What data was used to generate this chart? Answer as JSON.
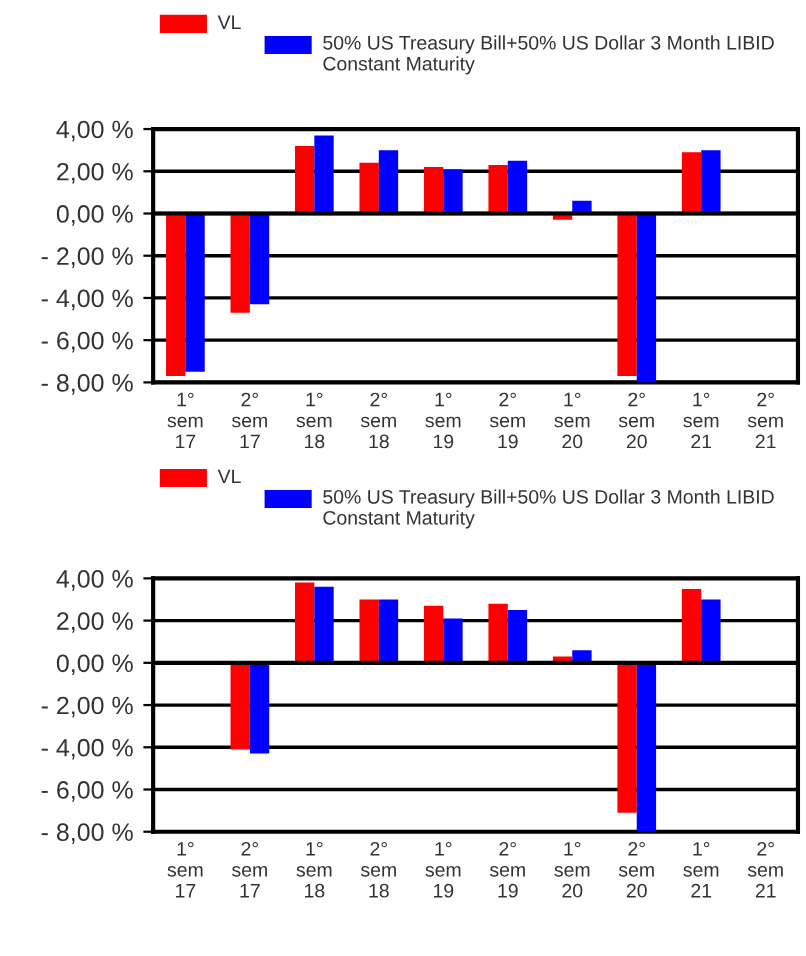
{
  "chart_data": [
    {
      "type": "bar",
      "categories": [
        "1°\nsem\n17",
        "2°\nsem\n17",
        "1°\nsem\n18",
        "2°\nsem\n18",
        "1°\nsem\n19",
        "2°\nsem\n19",
        "1°\nsem\n20",
        "2°\nsem\n20",
        "1°\nsem\n21",
        "2°\nsem\n21"
      ],
      "series": [
        {
          "name": "VL",
          "color": "#ff0000",
          "values": [
            -7.7,
            -4.7,
            3.2,
            2.4,
            2.2,
            2.3,
            -0.3,
            -7.7,
            2.9,
            null
          ]
        },
        {
          "name": "50% US Treasury Bill+50% US Dollar 3 Month LIBID Constant Maturity",
          "color": "#0000ff",
          "values": [
            -7.5,
            -4.3,
            3.7,
            3.0,
            2.1,
            2.5,
            0.6,
            -8.0,
            3.0,
            null
          ]
        }
      ],
      "ylim": [
        -8,
        4
      ],
      "yticks": [
        {
          "value": -8,
          "label": "- 8,00 %"
        },
        {
          "value": -6,
          "label": "- 6,00 %"
        },
        {
          "value": -4,
          "label": "- 4,00 %"
        },
        {
          "value": -2,
          "label": "- 2,00 %"
        },
        {
          "value": 0,
          "label": "0,00 %"
        },
        {
          "value": 2,
          "label": "2,00 %"
        },
        {
          "value": 4,
          "label": "4,00 %"
        }
      ],
      "grid": "y",
      "legend": "top"
    },
    {
      "type": "bar",
      "categories": [
        "1°\nsem\n17",
        "2°\nsem\n17",
        "1°\nsem\n18",
        "2°\nsem\n18",
        "1°\nsem\n19",
        "2°\nsem\n19",
        "1°\nsem\n20",
        "2°\nsem\n20",
        "1°\nsem\n21",
        "2°\nsem\n21"
      ],
      "series": [
        {
          "name": "VL",
          "color": "#ff0000",
          "values": [
            null,
            -4.1,
            3.8,
            3.0,
            2.7,
            2.8,
            0.3,
            -7.1,
            3.5,
            null
          ]
        },
        {
          "name": "50% US Treasury Bill+50% US Dollar 3 Month LIBID Constant Maturity",
          "color": "#0000ff",
          "values": [
            null,
            -4.3,
            3.6,
            3.0,
            2.1,
            2.5,
            0.6,
            -8.0,
            3.0,
            null
          ]
        }
      ],
      "ylim": [
        -8,
        4
      ],
      "yticks": [
        {
          "value": -8,
          "label": "- 8,00 %"
        },
        {
          "value": -6,
          "label": "- 6,00 %"
        },
        {
          "value": -4,
          "label": "- 4,00 %"
        },
        {
          "value": -2,
          "label": "- 2,00 %"
        },
        {
          "value": 0,
          "label": "0,00 %"
        },
        {
          "value": 2,
          "label": "2,00 %"
        },
        {
          "value": 4,
          "label": "4,00 %"
        }
      ],
      "grid": "y",
      "legend": "top"
    }
  ]
}
